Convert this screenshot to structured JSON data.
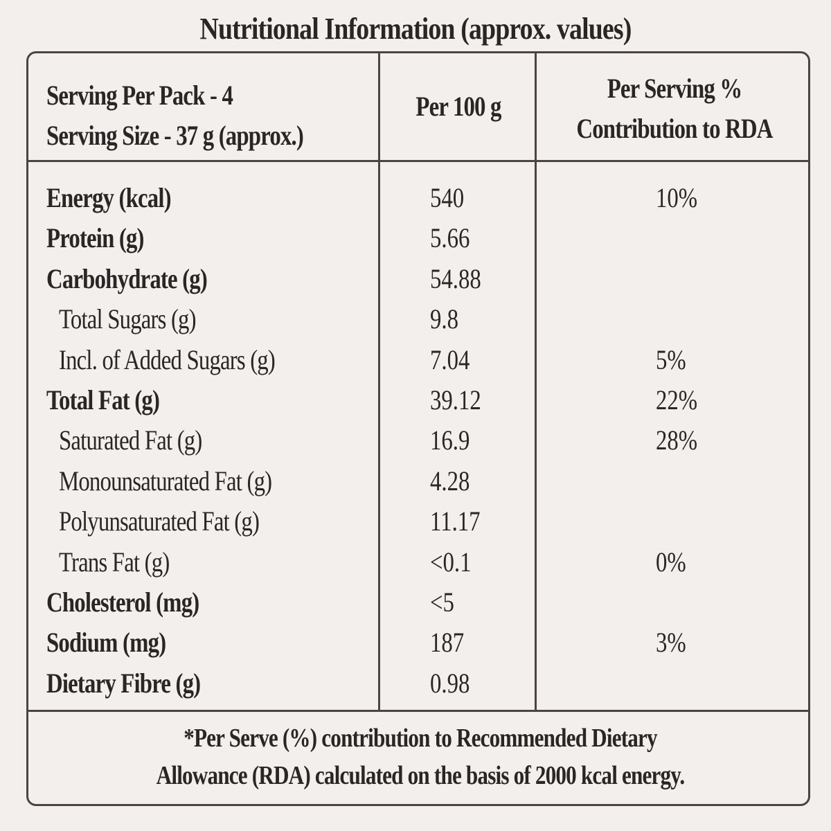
{
  "title": "Nutritional Information (approx. values)",
  "header": {
    "serving_per_pack": "Serving Per Pack - 4",
    "serving_size": "Serving Size - 37 g (approx.)",
    "per_100g": "Per 100 g",
    "per_serving_line1": "Per Serving %",
    "per_serving_line2": "Contribution to RDA"
  },
  "rows": [
    {
      "nutrient": "Energy (kcal)",
      "per_100g": "540",
      "rda": "10%",
      "level": "main"
    },
    {
      "nutrient": "Protein (g)",
      "per_100g": "5.66",
      "rda": "",
      "level": "main"
    },
    {
      "nutrient": "Carbohydrate (g)",
      "per_100g": "54.88",
      "rda": "",
      "level": "main"
    },
    {
      "nutrient": "Total Sugars (g)",
      "per_100g": "9.8",
      "rda": "",
      "level": "sub"
    },
    {
      "nutrient": "Incl. of Added Sugars (g)",
      "per_100g": "7.04",
      "rda": "5%",
      "level": "sub"
    },
    {
      "nutrient": "Total Fat (g)",
      "per_100g": "39.12",
      "rda": "22%",
      "level": "main"
    },
    {
      "nutrient": "Saturated Fat (g)",
      "per_100g": "16.9",
      "rda": "28%",
      "level": "sub"
    },
    {
      "nutrient": "Monounsaturated Fat (g)",
      "per_100g": "4.28",
      "rda": "",
      "level": "sub"
    },
    {
      "nutrient": "Polyunsaturated Fat (g)",
      "per_100g": "11.17",
      "rda": "",
      "level": "sub"
    },
    {
      "nutrient": "Trans Fat (g)",
      "per_100g": "<0.1",
      "rda": "0%",
      "level": "sub"
    },
    {
      "nutrient": "Cholesterol (mg)",
      "per_100g": "<5",
      "rda": "",
      "level": "main"
    },
    {
      "nutrient": "Sodium (mg)",
      "per_100g": "187",
      "rda": "3%",
      "level": "main"
    },
    {
      "nutrient": "Dietary Fibre (g)",
      "per_100g": "0.98",
      "rda": "",
      "level": "main"
    }
  ],
  "footnote": {
    "line1": "*Per Serve (%) contribution to Recommended Dietary",
    "line2": "Allowance (RDA) calculated on the basis of 2000 kcal energy."
  }
}
